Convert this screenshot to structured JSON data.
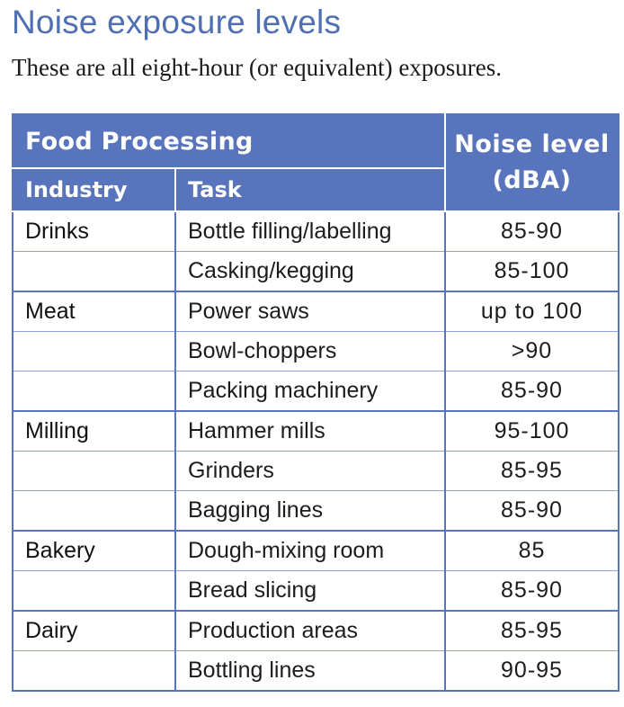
{
  "title": "Noise exposure levels",
  "subtitle": "These are all eight-hour (or equivalent) exposures.",
  "table": {
    "group_header": "Food Processing",
    "noise_header_line1": "Noise level",
    "noise_header_line2": "(dBA)",
    "industry_header": "Industry",
    "task_header": "Task",
    "rows": [
      {
        "industry": "Drinks",
        "task": "Bottle filling/labelling",
        "level": "85-90"
      },
      {
        "industry": "",
        "task": "Casking/kegging",
        "level": "85-100"
      },
      {
        "industry": "Meat",
        "task": "Power saws",
        "level": "up to 100"
      },
      {
        "industry": "",
        "task": "Bowl-choppers",
        "level": ">90"
      },
      {
        "industry": "",
        "task": "Packing machinery",
        "level": "85-90"
      },
      {
        "industry": "Milling",
        "task": "Hammer mills",
        "level": "95-100"
      },
      {
        "industry": "",
        "task": "Grinders",
        "level": "85-95"
      },
      {
        "industry": "",
        "task": "Bagging lines",
        "level": "85-90"
      },
      {
        "industry": "Bakery",
        "task": "Dough-mixing room",
        "level": "85"
      },
      {
        "industry": "",
        "task": "Bread slicing",
        "level": "85-90"
      },
      {
        "industry": "Dairy",
        "task": "Production areas",
        "level": "85-95"
      },
      {
        "industry": "",
        "task": "Bottling lines",
        "level": "90-95"
      }
    ]
  }
}
